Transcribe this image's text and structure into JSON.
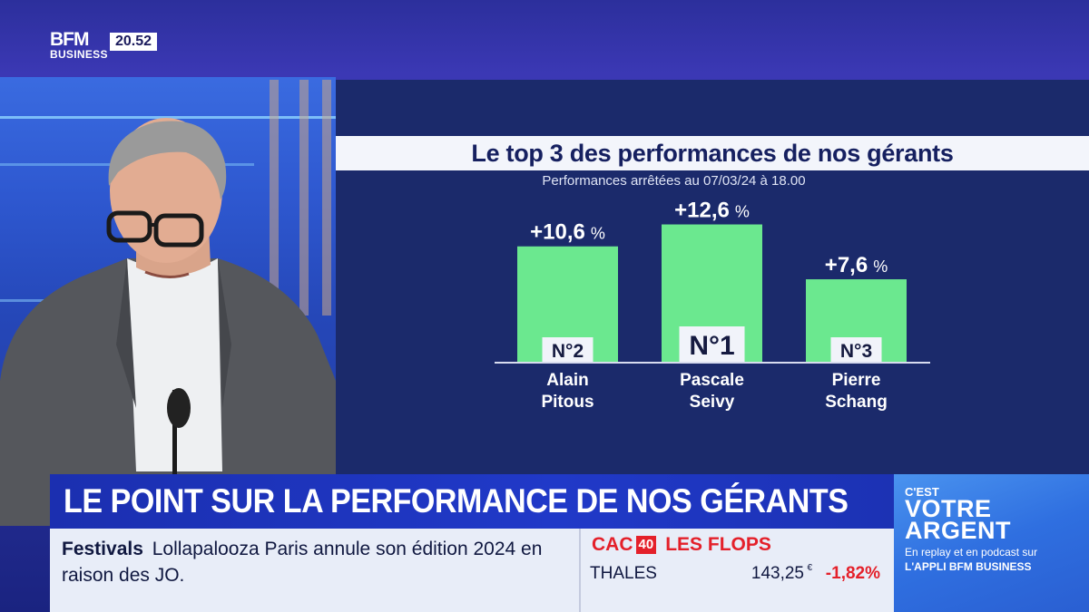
{
  "broadcast": {
    "logo_main": "BFM",
    "logo_sub": "BUSINESS",
    "clock": "20.52"
  },
  "chart_data": {
    "type": "bar",
    "title": "Le top 3 des performances de nos gérants",
    "subtitle": "Performances arrêtées au 07/03/24 à 18.00",
    "unit": "%",
    "ylim": [
      0,
      14
    ],
    "bars": [
      {
        "value_label": "+10,6",
        "value": 10.6,
        "rank": "N°2",
        "name_line1": "Alain",
        "name_line2": "Pitous"
      },
      {
        "value_label": "+12,6",
        "value": 12.6,
        "rank": "N°1",
        "name_line1": "Pascale",
        "name_line2": "Seivy"
      },
      {
        "value_label": "+7,6",
        "value": 7.6,
        "rank": "N°3",
        "name_line1": "Pierre",
        "name_line2": "Schang"
      }
    ],
    "colors": {
      "bar": "#6be88f",
      "rank_box": "#f1f3fa"
    }
  },
  "lower_third": {
    "headline": "LE POINT SUR LA PERFORMANCE DE NOS GÉRANTS",
    "news_category": "Festivals",
    "news_text": "Lollapalooza Paris annule son édition 2024 en raison des JO.",
    "index_label": "CAC",
    "index_num": "40",
    "flops_label": "LES FLOPS",
    "stock_name": "THALES",
    "stock_price": "143,25",
    "stock_currency": "€",
    "stock_change": "-1,82%"
  },
  "promo": {
    "line1": "C'EST",
    "line2": "VOTRE",
    "line3": "ARGENT",
    "foot1": "En replay et en podcast sur",
    "foot2": "L'APPLI BFM BUSINESS"
  }
}
